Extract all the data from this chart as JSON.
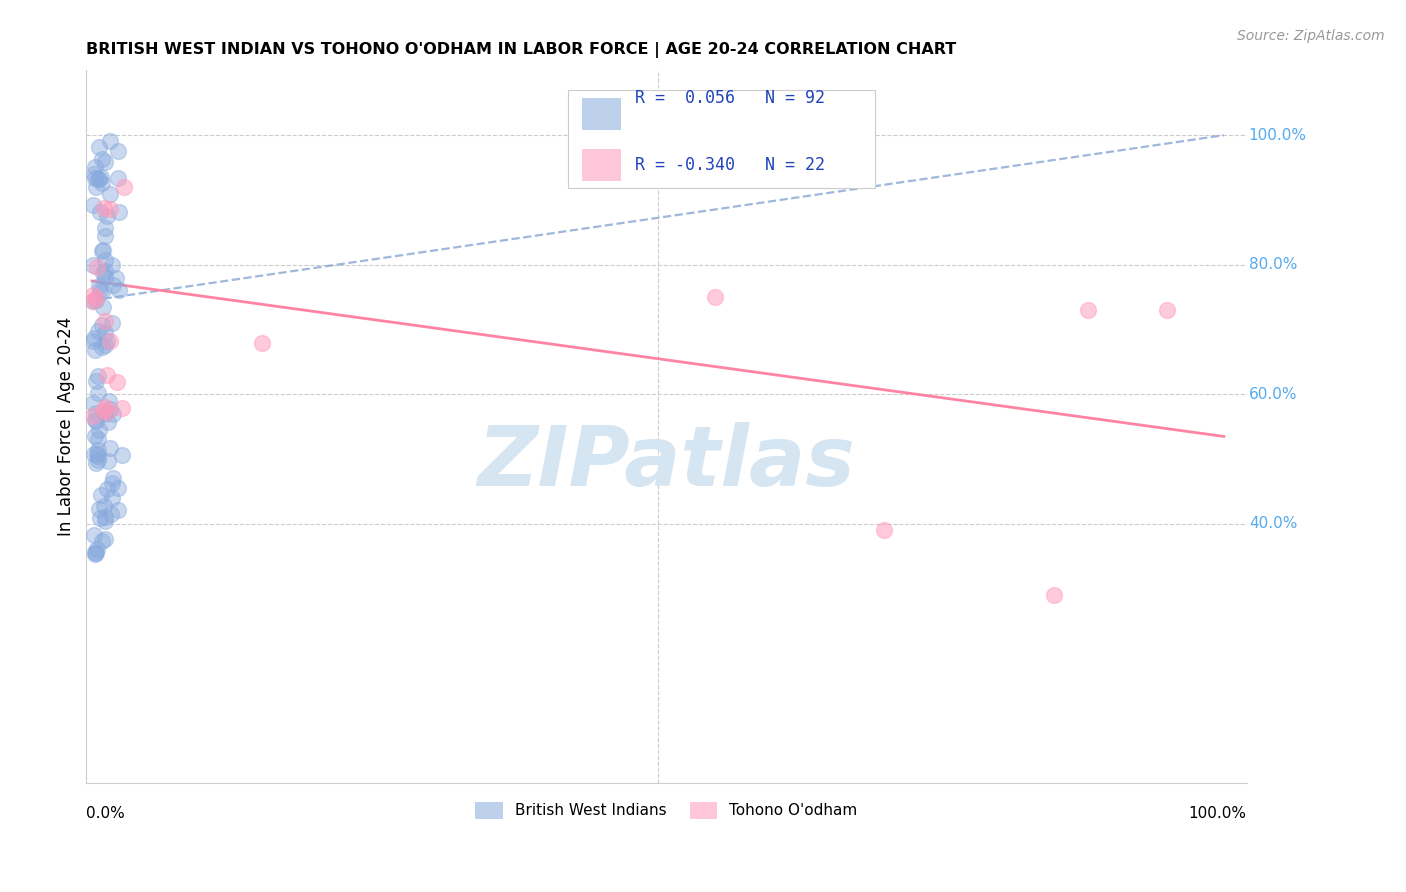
{
  "title": "BRITISH WEST INDIAN VS TOHONO O'ODHAM IN LABOR FORCE | AGE 20-24 CORRELATION CHART",
  "source": "Source: ZipAtlas.com",
  "ylabel": "In Labor Force | Age 20-24",
  "legend_label1": "British West Indians",
  "legend_label2": "Tohono O'odham",
  "r1": 0.056,
  "n1": 92,
  "r2": -0.34,
  "n2": 22,
  "blue_color": "#88AADD",
  "pink_color": "#FF99BB",
  "blue_line_color": "#7799CC",
  "pink_line_color": "#FF7799",
  "grid_color": "#CCCCCC",
  "right_axis_color": "#55AAEE",
  "watermark": "ZIPatlas",
  "watermark_color": "#D5E5F2",
  "blue_line_start_y": 0.745,
  "blue_line_end_y": 1.0,
  "pink_line_start_y": 0.775,
  "pink_line_end_y": 0.535,
  "ytick_positions": [
    0.4,
    0.6,
    0.8,
    1.0
  ],
  "ytick_labels": [
    "40.0%",
    "60.0%",
    "80.0%",
    "100.0%"
  ],
  "xlim": [
    -0.005,
    1.02
  ],
  "ylim": [
    0.0,
    1.1
  ]
}
